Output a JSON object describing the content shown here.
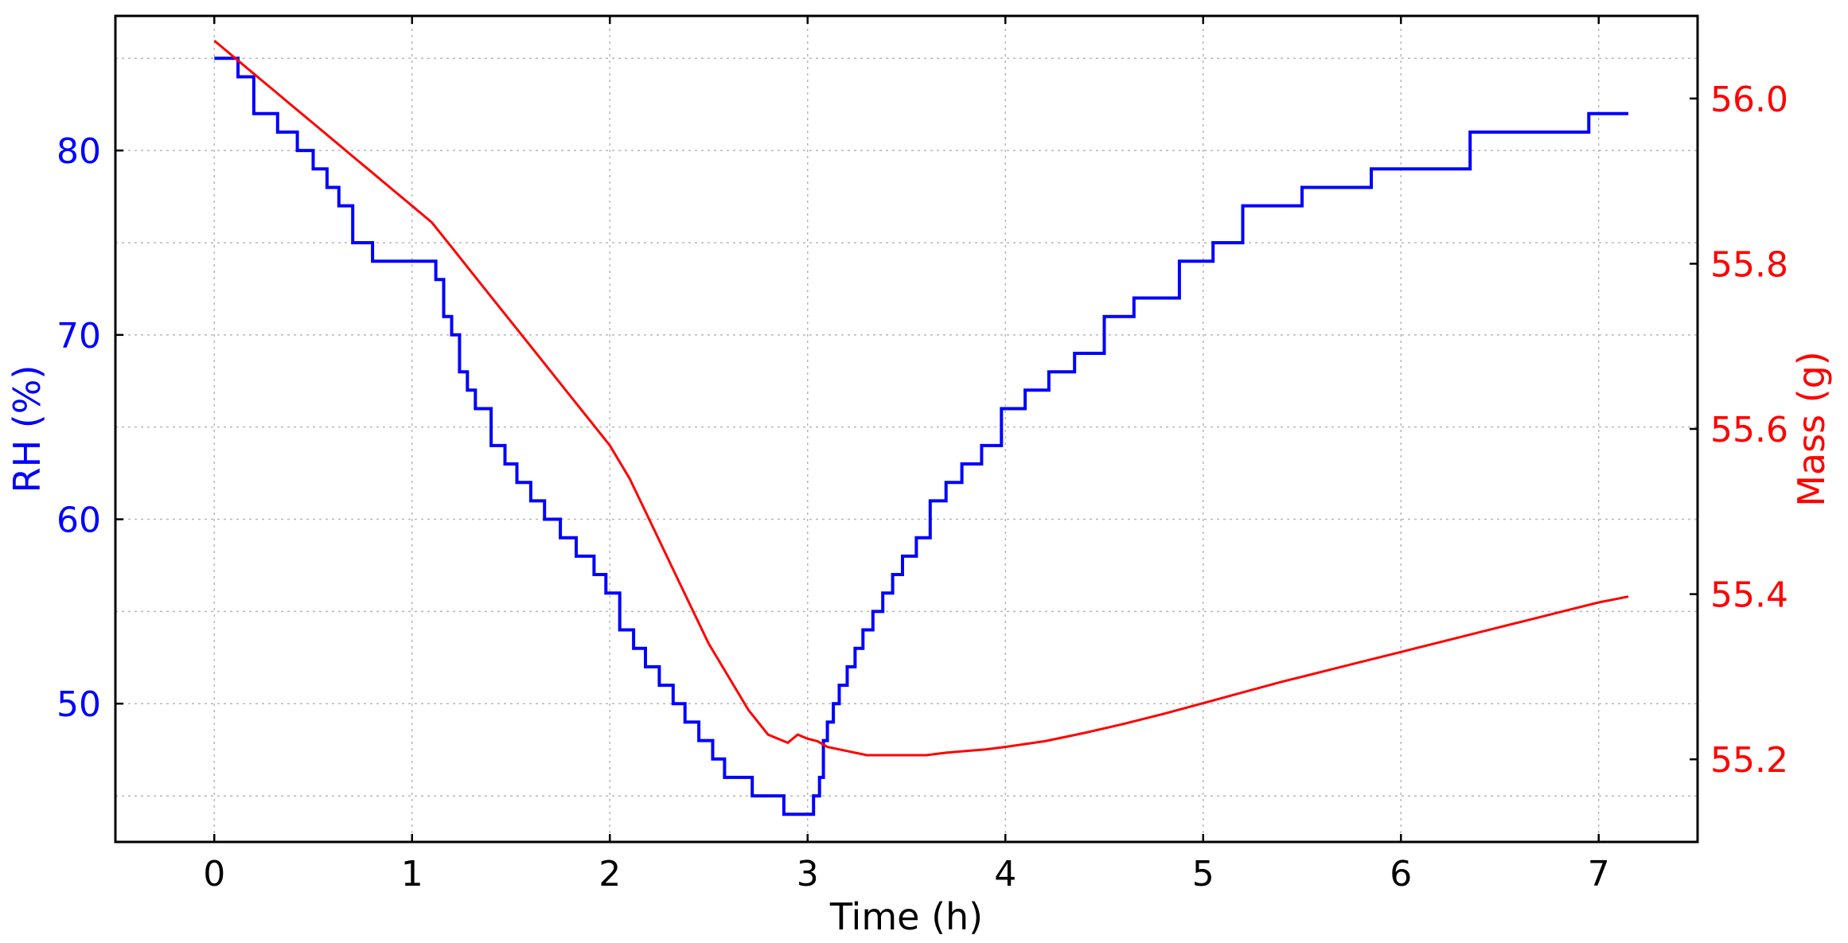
{
  "chart_data": {
    "type": "line",
    "xlabel": "Time (h)",
    "xlim": [
      -0.5,
      7.5
    ],
    "xticks": [
      0,
      1,
      2,
      3,
      4,
      5,
      6,
      7
    ],
    "grid": true,
    "left_axis": {
      "label": "RH (%)",
      "color": "#0000ff",
      "ylim": [
        42.5,
        87.3
      ],
      "ticks": [
        50,
        60,
        70,
        80
      ],
      "grid_ticks": [
        45,
        50,
        55,
        60,
        65,
        70,
        75,
        80,
        85
      ]
    },
    "right_axis": {
      "label": "Mass (g)",
      "color": "#ff0000",
      "ylim": [
        55.1,
        56.1
      ],
      "ticks": [
        55.2,
        55.4,
        55.6,
        55.8,
        56.0
      ],
      "tick_labels": [
        "55.2",
        "55.4",
        "55.6",
        "55.8",
        "56.0"
      ]
    },
    "series": [
      {
        "axis": "left",
        "color": "#0000ff",
        "style": "step",
        "x": [
          0.0,
          0.12,
          0.2,
          0.32,
          0.42,
          0.5,
          0.57,
          0.63,
          0.7,
          0.8,
          1.05,
          1.12,
          1.16,
          1.2,
          1.24,
          1.28,
          1.32,
          1.4,
          1.47,
          1.53,
          1.6,
          1.67,
          1.75,
          1.83,
          1.92,
          1.98,
          2.05,
          2.12,
          2.18,
          2.25,
          2.32,
          2.38,
          2.45,
          2.52,
          2.58,
          2.65,
          2.72,
          2.8,
          2.88,
          2.95,
          3.03,
          3.06,
          3.08,
          3.1,
          3.13,
          3.16,
          3.2,
          3.24,
          3.28,
          3.33,
          3.38,
          3.43,
          3.48,
          3.55,
          3.62,
          3.7,
          3.78,
          3.88,
          3.98,
          4.1,
          4.22,
          4.35,
          4.5,
          4.65,
          4.88,
          5.05,
          5.2,
          5.5,
          5.85,
          6.35,
          6.95,
          7.15
        ],
        "y": [
          85,
          84,
          82,
          81,
          80,
          79,
          78,
          77,
          75,
          74,
          74,
          73,
          71,
          70,
          68,
          67,
          66,
          64,
          63,
          62,
          61,
          60,
          59,
          58,
          57,
          56,
          54,
          53,
          52,
          51,
          50,
          49,
          48,
          47,
          46,
          46,
          45,
          45,
          44,
          44,
          45,
          46,
          48,
          49,
          50,
          51,
          52,
          53,
          54,
          55,
          56,
          57,
          58,
          59,
          61,
          62,
          63,
          64,
          66,
          67,
          68,
          69,
          71,
          72,
          74,
          75,
          77,
          78,
          79,
          81,
          82,
          82
        ]
      },
      {
        "axis": "right",
        "color": "#ff0000",
        "style": "line",
        "x": [
          0.0,
          0.05,
          0.1,
          0.2,
          0.3,
          0.4,
          0.5,
          0.6,
          0.7,
          0.8,
          0.9,
          1.0,
          1.1,
          1.2,
          1.3,
          1.4,
          1.5,
          1.6,
          1.7,
          1.8,
          1.9,
          2.0,
          2.1,
          2.2,
          2.3,
          2.4,
          2.5,
          2.6,
          2.7,
          2.8,
          2.9,
          2.95,
          3.0,
          3.05,
          3.1,
          3.2,
          3.3,
          3.4,
          3.5,
          3.6,
          3.7,
          3.8,
          3.9,
          4.0,
          4.2,
          4.4,
          4.6,
          4.8,
          5.0,
          5.2,
          5.4,
          5.6,
          5.8,
          6.0,
          6.2,
          6.4,
          6.6,
          6.8,
          7.0,
          7.15
        ],
        "y": [
          56.07,
          56.06,
          56.05,
          56.03,
          56.01,
          55.99,
          55.97,
          55.95,
          55.93,
          55.91,
          55.89,
          55.87,
          55.85,
          55.82,
          55.79,
          55.76,
          55.73,
          55.7,
          55.67,
          55.64,
          55.61,
          55.58,
          55.54,
          55.49,
          55.44,
          55.39,
          55.34,
          55.3,
          55.26,
          55.23,
          55.22,
          55.23,
          55.225,
          55.222,
          55.215,
          55.21,
          55.205,
          55.205,
          55.205,
          55.205,
          55.208,
          55.21,
          55.212,
          55.215,
          55.222,
          55.232,
          55.243,
          55.255,
          55.268,
          55.281,
          55.294,
          55.306,
          55.318,
          55.33,
          55.342,
          55.354,
          55.366,
          55.378,
          55.39,
          55.397
        ]
      }
    ]
  }
}
